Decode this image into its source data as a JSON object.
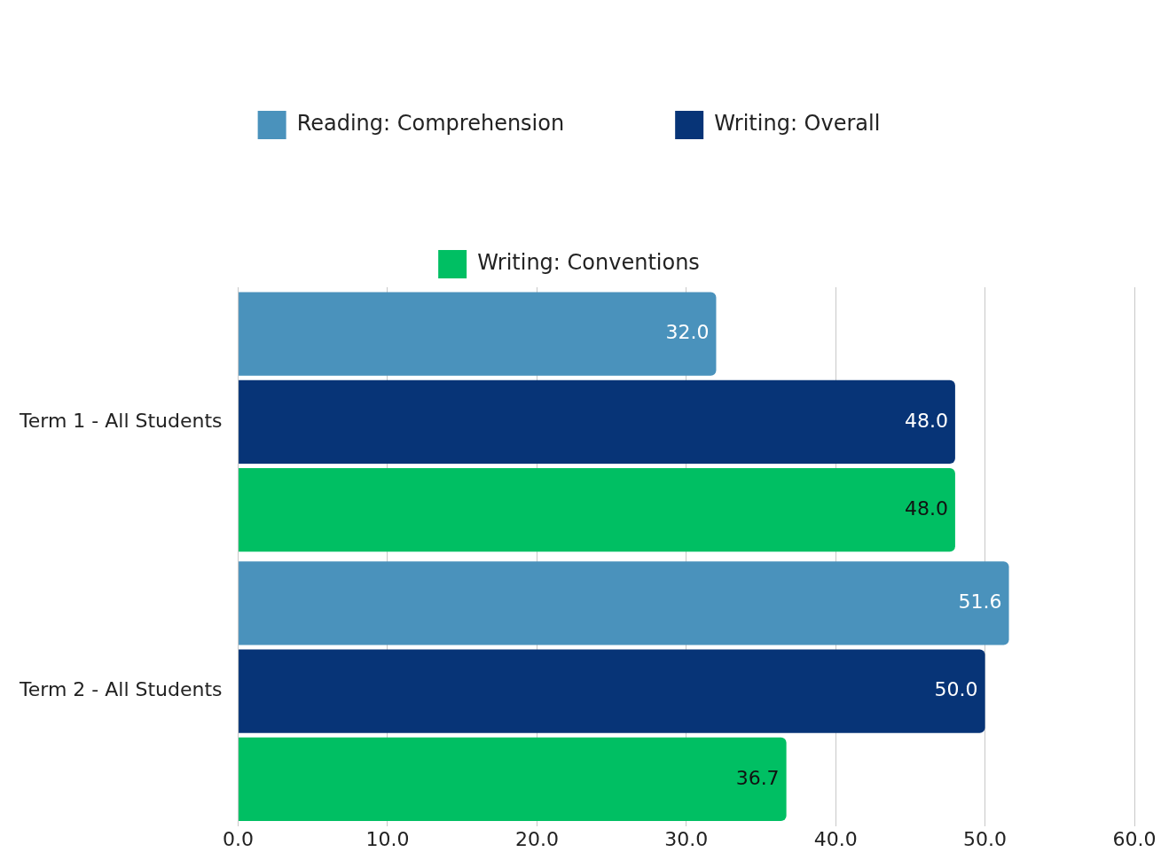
{
  "chart_data": {
    "type": "bar",
    "orientation": "horizontal",
    "categories": [
      "Term 1 - All Students",
      "Term 2 - All Students"
    ],
    "series": [
      {
        "name": "Reading: Comprehension",
        "color": "#4a92bc",
        "values": [
          32.0,
          51.6
        ],
        "value_labels": [
          "32.0",
          "51.6"
        ]
      },
      {
        "name": "Writing: Overall",
        "color": "#073477",
        "values": [
          48.0,
          50.0
        ],
        "value_labels": [
          "48.0",
          "50.0"
        ]
      },
      {
        "name": "Writing: Conventions",
        "color": "#00bf63",
        "values": [
          48.0,
          36.7
        ],
        "value_labels": [
          "48.0",
          "36.7"
        ]
      }
    ],
    "xlim": [
      0,
      60
    ],
    "xticks": [
      {
        "value": 0,
        "label": "0.0"
      },
      {
        "value": 10,
        "label": "10.0"
      },
      {
        "value": 20,
        "label": "20.0"
      },
      {
        "value": 30,
        "label": "30.0"
      },
      {
        "value": 40,
        "label": "40.0"
      },
      {
        "value": 50,
        "label": "50.0"
      },
      {
        "value": 60,
        "label": "60.0"
      }
    ],
    "grid": "x",
    "legend": "top"
  }
}
